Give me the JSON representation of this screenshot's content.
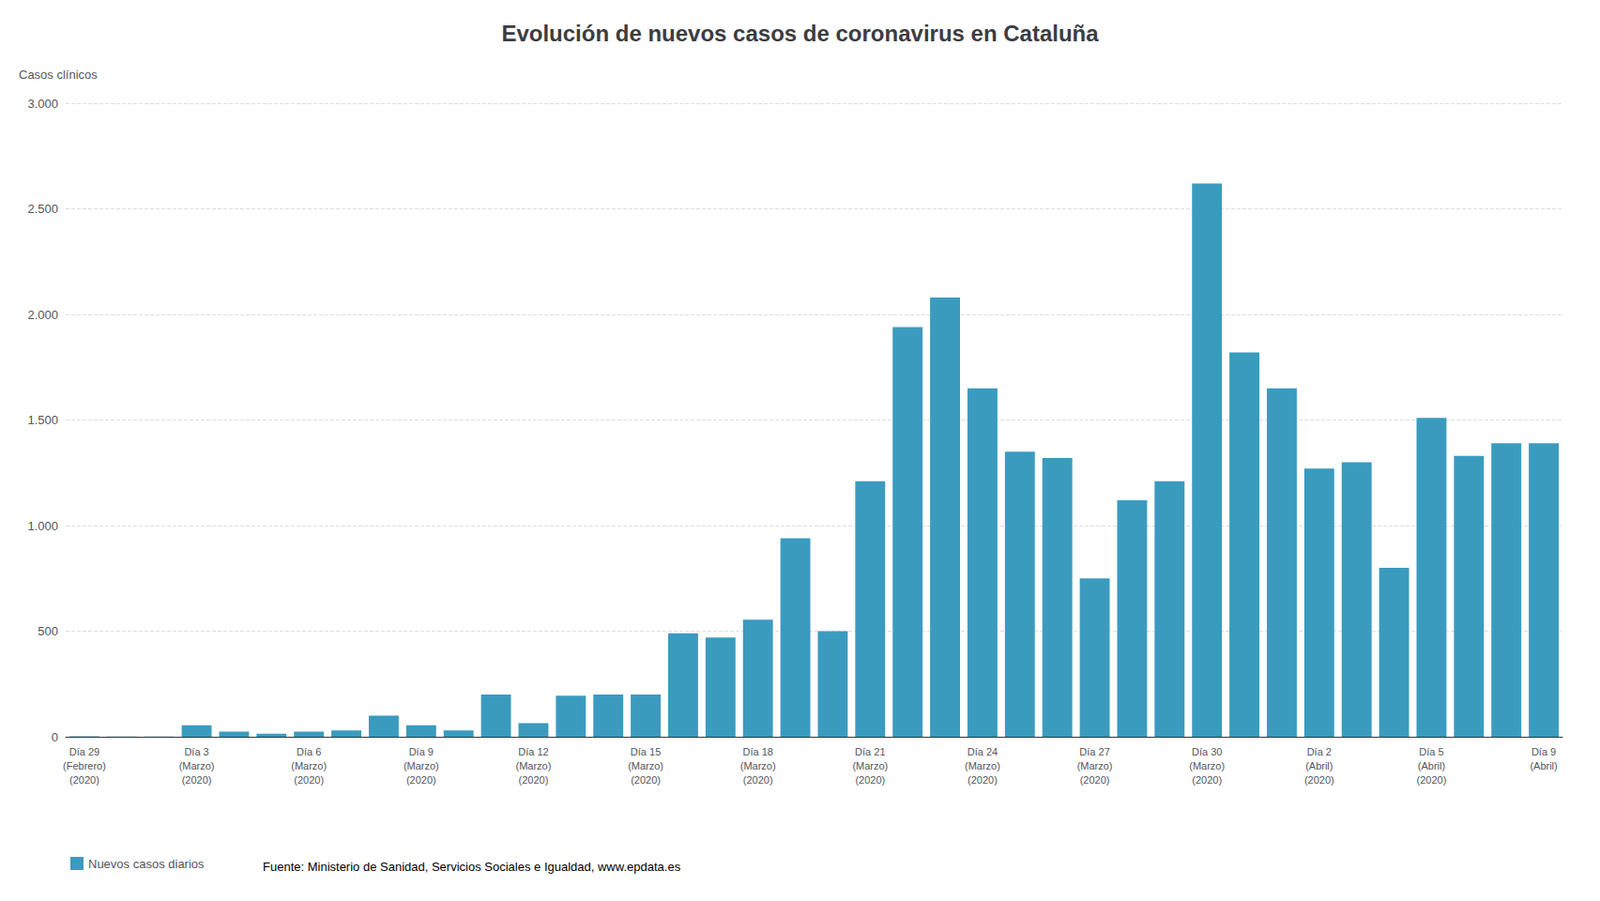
{
  "chart_data": {
    "type": "bar",
    "title": "Evolución de nuevos casos de coronavirus en Cataluña",
    "ylabel": "Casos clínicos",
    "categories": [
      "Día 29\n(Febrero)\n(2020)",
      null,
      null,
      "Día 3\n(Marzo)\n(2020)",
      null,
      null,
      "Día 6\n(Marzo)\n(2020)",
      null,
      null,
      "Día 9\n(Marzo)\n(2020)",
      null,
      null,
      "Día 12\n(Marzo)\n(2020)",
      null,
      null,
      "Día 15\n(Marzo)\n(2020)",
      null,
      null,
      "Día 18\n(Marzo)\n(2020)",
      null,
      null,
      "Día 21\n(Marzo)\n(2020)",
      null,
      null,
      "Día 24\n(Marzo)\n(2020)",
      null,
      null,
      "Día 27\n(Marzo)\n(2020)",
      null,
      null,
      "Día 30\n(Marzo)\n(2020)",
      null,
      null,
      "Día 2\n(Abril)\n(2020)",
      null,
      null,
      "Día 5\n(Abril)\n(2020)",
      null,
      null,
      "Día 9\n(Abril)"
    ],
    "series": [
      {
        "name": "Nuevos casos diarios",
        "color": "#3a9bbf",
        "values": [
          2,
          1,
          1,
          55,
          25,
          15,
          25,
          30,
          100,
          55,
          30,
          200,
          65,
          195,
          200,
          200,
          490,
          470,
          555,
          940,
          500,
          1210,
          1940,
          2080,
          1650,
          1350,
          1320,
          750,
          1120,
          1210,
          2620,
          1820,
          1650,
          1270,
          1300,
          800,
          1510,
          1330,
          1390,
          1390
        ]
      }
    ],
    "ylim": [
      0,
      3000
    ],
    "yticks": [
      0,
      500,
      {
        "value": 1000,
        "label": "1.000"
      },
      {
        "value": 1500,
        "label": "1.500"
      },
      {
        "value": 2000,
        "label": "2.000"
      },
      {
        "value": 2500,
        "label": "2.500"
      },
      {
        "value": 3000,
        "label": "3.000"
      }
    ],
    "grid": true,
    "legend": "lower left",
    "annotations": [
      "Fuente: Ministerio de Sanidad, Servicios Sociales e Igualdad, www.epdata.es"
    ]
  }
}
